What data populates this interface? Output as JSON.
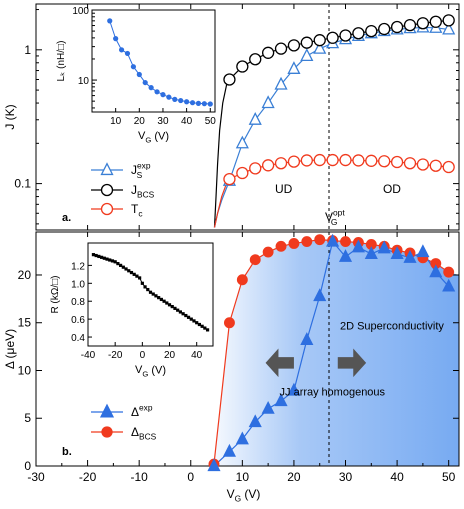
{
  "chart_data": [
    {
      "panel": "a.",
      "type": "scatter",
      "ylabel": "J (K)",
      "yscale": "log",
      "ylim": [
        0.045,
        2.2
      ],
      "xlim": [
        -30,
        52
      ],
      "yticks": [
        {
          "v": 0.1,
          "label": "0.1"
        },
        {
          "v": 1,
          "label": "1"
        }
      ],
      "grid": false,
      "legend_position": "lower-left",
      "legend": {
        "js": {
          "base": "J",
          "sup": "exp",
          "sub": "S"
        },
        "jbcs": {
          "base": "J",
          "sub": "BCS"
        },
        "tc": {
          "base": "T",
          "sub": "c"
        }
      },
      "series": [
        {
          "key": "js",
          "name": "Js exp",
          "marker": "triangle-open",
          "color": "#3a7fd5",
          "x": [
            7.5,
            10,
            12.5,
            15,
            17.5,
            20,
            22.5,
            25,
            27.5,
            30,
            32.5,
            35,
            37.5,
            40,
            42.5,
            45,
            47.5,
            50
          ],
          "y": [
            0.105,
            0.2,
            0.3,
            0.4,
            0.55,
            0.72,
            0.9,
            1.02,
            1.12,
            1.2,
            1.27,
            1.33,
            1.38,
            1.42,
            1.45,
            1.47,
            1.46,
            1.42
          ]
        },
        {
          "key": "jbcs",
          "name": "JBCS",
          "marker": "circle-open",
          "color": "#000000",
          "x": [
            7.5,
            10,
            12.5,
            15,
            17.5,
            20,
            22.5,
            25,
            27.5,
            30,
            32.5,
            35,
            37.5,
            40,
            42.5,
            45,
            47.5,
            50
          ],
          "y": [
            0.6,
            0.75,
            0.85,
            0.95,
            1.02,
            1.08,
            1.13,
            1.18,
            1.23,
            1.28,
            1.33,
            1.38,
            1.43,
            1.48,
            1.53,
            1.58,
            1.62,
            1.66
          ]
        },
        {
          "key": "tc",
          "name": "Tc",
          "marker": "circle-open",
          "color": "#f03a1e",
          "x": [
            7.5,
            10,
            12.5,
            15,
            17.5,
            20,
            22.5,
            25,
            27.5,
            30,
            32.5,
            35,
            37.5,
            40,
            42.5,
            45,
            47.5,
            50
          ],
          "y": [
            0.108,
            0.12,
            0.13,
            0.137,
            0.142,
            0.146,
            0.149,
            0.15,
            0.15,
            0.15,
            0.149,
            0.148,
            0.147,
            0.145,
            0.142,
            0.139,
            0.136,
            0.133
          ]
        }
      ],
      "curves": {
        "jbcs_start": [
          [
            4.6,
            0.047
          ],
          [
            4.9,
            0.08
          ],
          [
            5.2,
            0.14
          ],
          [
            5.6,
            0.25
          ],
          [
            6.2,
            0.4
          ],
          [
            7.0,
            0.56
          ],
          [
            7.5,
            0.6
          ]
        ],
        "js_start": [
          [
            4.6,
            0.047
          ],
          [
            5.2,
            0.06
          ],
          [
            6.0,
            0.075
          ],
          [
            6.8,
            0.09
          ],
          [
            7.5,
            0.105
          ]
        ],
        "tc_start": [
          [
            4.6,
            0.047
          ],
          [
            5.2,
            0.06
          ],
          [
            6.0,
            0.08
          ],
          [
            6.8,
            0.097
          ],
          [
            7.5,
            0.108
          ]
        ]
      },
      "vline_x": 26.8,
      "annotations": {
        "ud": "UD",
        "od": "OD",
        "vg_opt": {
          "base": "V",
          "sub": "G",
          "sup": "opt"
        }
      },
      "inset": {
        "type": "line",
        "ylabel": "Lₖ (nH/□)",
        "xlabel": "VG (V)",
        "yscale": "log",
        "ylim": [
          3.5,
          100
        ],
        "xlim": [
          0,
          52
        ],
        "xticks": [
          10,
          20,
          30,
          40,
          50
        ],
        "yticks": [
          {
            "v": 10,
            "label": "10"
          },
          {
            "v": 100,
            "label": "100"
          }
        ],
        "color": "#2e6fe0",
        "x": [
          7.5,
          10,
          12.5,
          15,
          17.5,
          20,
          22.5,
          25,
          27.5,
          30,
          32.5,
          35,
          37.5,
          40,
          42.5,
          45,
          47.5,
          50
        ],
        "y": [
          70,
          39,
          27,
          24,
          15.5,
          12,
          9.2,
          7.8,
          6.8,
          6.2,
          5.7,
          5.3,
          5.1,
          4.9,
          4.75,
          4.65,
          4.6,
          4.55
        ]
      }
    },
    {
      "panel": "b.",
      "type": "line",
      "ylabel": "Δ (μeV)",
      "xlabel": "VG (V)",
      "xlim": [
        -30,
        52
      ],
      "ylim": [
        0,
        24.5
      ],
      "xticks": [
        -30,
        -20,
        -10,
        0,
        10,
        20,
        30,
        40,
        50
      ],
      "yticks": [
        0,
        5,
        10,
        15,
        20
      ],
      "grid": false,
      "legend_position": "lower-left",
      "legend": {
        "dexp": {
          "base": "Δ",
          "sup": "exp"
        },
        "dbcs": {
          "base": "Δ",
          "sub": "BCS"
        }
      },
      "series": [
        {
          "key": "dexp",
          "name": "Δexp",
          "marker": "triangle-filled",
          "color": "#2e6fe0",
          "x": [
            4.5,
            7.5,
            10,
            12.5,
            15,
            17.5,
            20,
            22.5,
            25,
            27.5,
            30,
            32.5,
            35,
            37.5,
            40,
            42.5,
            45,
            47.5,
            50
          ],
          "y": [
            0,
            1.5,
            2.8,
            4.6,
            6.0,
            6.8,
            7.9,
            13.2,
            17.8,
            23.5,
            21.9,
            22.9,
            22.2,
            22.8,
            22.2,
            21.8,
            22.4,
            20.3,
            18.8
          ]
        },
        {
          "key": "dbcs",
          "name": "ΔBCS",
          "marker": "circle-filled",
          "color": "#f03a1e",
          "x": [
            4.5,
            7.5,
            10,
            12.5,
            15,
            17.5,
            20,
            22.5,
            25,
            27.5,
            30,
            32.5,
            35,
            37.5,
            40,
            42.5,
            45,
            47.5,
            50
          ],
          "y": [
            0.2,
            15.0,
            19.5,
            21.6,
            22.4,
            23.0,
            23.3,
            23.5,
            23.7,
            23.6,
            23.5,
            23.4,
            23.2,
            23.0,
            22.6,
            22.3,
            21.8,
            21.2,
            20.3
          ]
        }
      ],
      "shade_color": "#3d86ec",
      "vline_x": 26.8,
      "annotations": {
        "jj_array": "JJ array",
        "homogenous": "homogenous",
        "sc2d": "2D Superconductivity"
      },
      "inset": {
        "type": "line",
        "ylabel": "R (kΩ/□)",
        "xlabel": "VG (V)",
        "xlim": [
          -40,
          52
        ],
        "ylim": [
          0.3,
          1.45
        ],
        "xticks": [
          -40,
          -20,
          0,
          20,
          40
        ],
        "yticks": [
          {
            "v": 0.4,
            "label": "0.4"
          },
          {
            "v": 0.6,
            "label": "0.6"
          },
          {
            "v": 0.8,
            "label": "0.8"
          },
          {
            "v": 1.0,
            "label": "1.0"
          },
          {
            "v": 1.2,
            "label": "1.2"
          }
        ],
        "color": "#000000",
        "x": [
          -36,
          -34,
          -32,
          -30,
          -28,
          -26,
          -24,
          -22,
          -20,
          -18,
          -16,
          -14,
          -12,
          -10,
          -8,
          -6,
          -4,
          -2,
          0,
          2,
          4,
          6,
          8,
          10,
          12,
          14,
          16,
          18,
          20,
          22,
          24,
          26,
          28,
          30,
          32,
          34,
          36,
          38,
          40,
          42,
          44,
          46,
          48
        ],
        "y": [
          1.32,
          1.31,
          1.3,
          1.29,
          1.28,
          1.27,
          1.26,
          1.25,
          1.24,
          1.22,
          1.2,
          1.18,
          1.16,
          1.14,
          1.12,
          1.1,
          1.08,
          1.06,
          1.0,
          0.96,
          0.93,
          0.9,
          0.88,
          0.86,
          0.84,
          0.82,
          0.8,
          0.78,
          0.76,
          0.74,
          0.72,
          0.7,
          0.68,
          0.66,
          0.64,
          0.62,
          0.6,
          0.58,
          0.56,
          0.54,
          0.52,
          0.5,
          0.48
        ]
      }
    }
  ]
}
